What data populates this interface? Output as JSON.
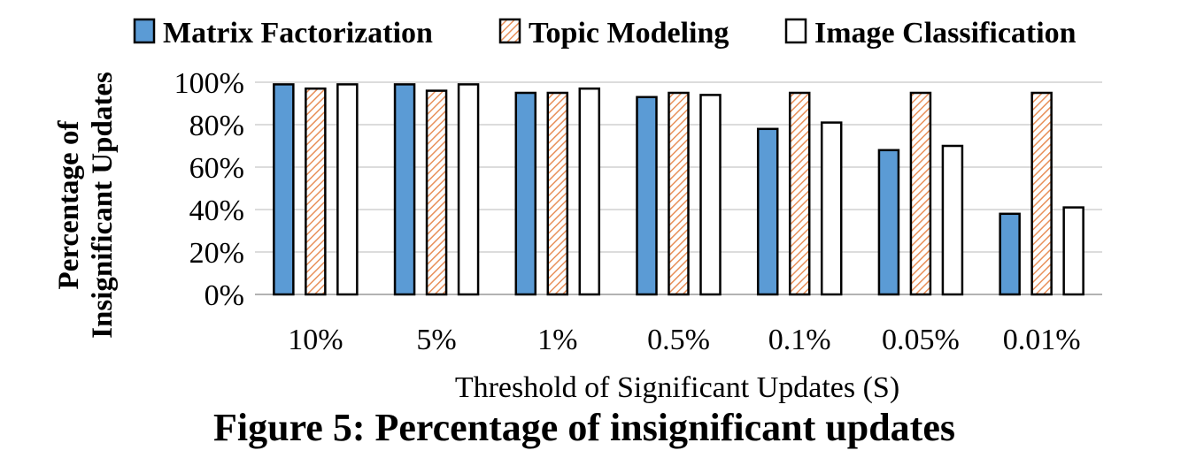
{
  "caption": "Figure 5: Percentage of insignificant updates",
  "chart_data": {
    "type": "bar",
    "xlabel": "Threshold of Significant Updates (S)",
    "ylabel_lines": [
      "Percentage of",
      "Insignificant Updates"
    ],
    "categories": [
      "10%",
      "5%",
      "1%",
      "0.5%",
      "0.1%",
      "0.05%",
      "0.01%"
    ],
    "y_ticks": [
      "0%",
      "20%",
      "40%",
      "60%",
      "80%",
      "100%"
    ],
    "ylim": [
      0,
      100
    ],
    "grid": true,
    "legend_position": "top",
    "series": [
      {
        "name": "Matrix Factorization",
        "values": [
          99,
          99,
          95,
          93,
          78,
          68,
          38
        ],
        "color": "#5b9bd5",
        "pattern": "solid"
      },
      {
        "name": "Topic Modeling",
        "values": [
          97,
          96,
          95,
          95,
          95,
          95,
          95
        ],
        "color": "#f4b183",
        "pattern": "hatched"
      },
      {
        "name": "Image Classification",
        "values": [
          99,
          99,
          97,
          94,
          81,
          70,
          41
        ],
        "color": "#ffffff",
        "pattern": "solid"
      }
    ]
  }
}
